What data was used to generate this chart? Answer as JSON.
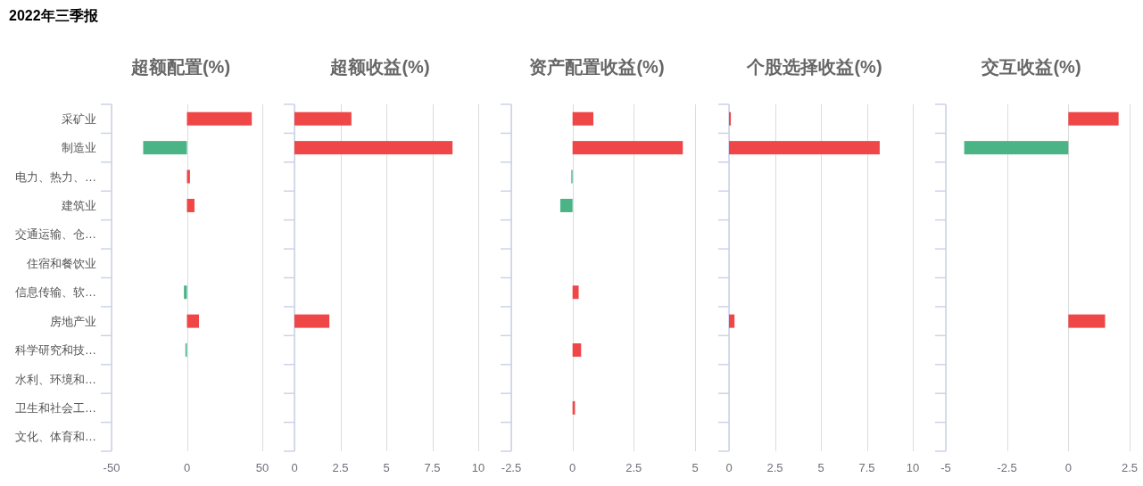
{
  "chart_data": [
    {
      "type": "other",
      "title": "2022年三季报"
    },
    {
      "type": "bar",
      "orientation": "horizontal",
      "title": "超额配置(%)",
      "categories": [
        "采矿业",
        "制造业",
        "电力、热力、…",
        "建筑业",
        "交通运输、仓…",
        "住宿和餐饮业",
        "信息传输、软…",
        "房地产业",
        "科学研究和技…",
        "水利、环境和…",
        "卫生和社会工…",
        "文化、体育和…"
      ],
      "values": [
        43,
        -29,
        2,
        5,
        null,
        null,
        -2,
        8,
        -1,
        null,
        null,
        null
      ],
      "colors": [
        "#ef4747",
        "#4bb487",
        "#ef4747",
        "#ef4747",
        null,
        null,
        "#4bb487",
        "#ef4747",
        "#4bb487",
        null,
        null,
        null
      ],
      "xlim": [
        -50,
        50
      ],
      "xticks": [
        -50,
        0,
        50
      ],
      "grid": "x"
    },
    {
      "type": "bar",
      "orientation": "horizontal",
      "title": "超额收益(%)",
      "categories": [
        null,
        null,
        null,
        null,
        null,
        null,
        null,
        null,
        null,
        null,
        null,
        null
      ],
      "values": [
        3.1,
        8.6,
        null,
        null,
        null,
        null,
        null,
        1.9,
        null,
        null,
        null,
        null
      ],
      "colors": [
        "#ef4747",
        "#ef4747",
        null,
        null,
        null,
        null,
        null,
        "#ef4747",
        null,
        null,
        null,
        null
      ],
      "xlim": [
        0,
        10
      ],
      "xticks": [
        0,
        2.5,
        5,
        7.5,
        10
      ],
      "grid": "x",
      "tick_labels": "x"
    },
    {
      "type": "bar",
      "orientation": "horizontal",
      "title": "资产配置收益(%)",
      "categories": [
        null,
        null,
        null,
        null,
        null,
        null,
        null,
        null,
        null,
        null,
        null,
        null
      ],
      "values": [
        0.85,
        4.5,
        -0.05,
        -0.5,
        null,
        null,
        0.25,
        null,
        0.35,
        null,
        0.1,
        null
      ],
      "colors": [
        "#ef4747",
        "#ef4747",
        "#4bb487",
        "#4bb487",
        null,
        null,
        "#ef4747",
        null,
        "#ef4747",
        null,
        "#ef4747",
        null
      ],
      "xlim": [
        -2.5,
        5
      ],
      "xticks": [
        -2.5,
        0,
        2.5,
        5
      ],
      "grid": "x",
      "tick_labels": "x"
    },
    {
      "type": "bar",
      "orientation": "horizontal",
      "title": "个股选择收益(%)",
      "categories": [
        null,
        null,
        null,
        null,
        null,
        null,
        null,
        null,
        null,
        null,
        null,
        null
      ],
      "values": [
        0.1,
        8.2,
        null,
        null,
        null,
        null,
        null,
        0.3,
        null,
        null,
        null,
        null
      ],
      "colors": [
        "#ef4747",
        "#ef4747",
        null,
        null,
        null,
        null,
        null,
        "#ef4747",
        null,
        null,
        null,
        null
      ],
      "xlim": [
        0,
        10
      ],
      "xticks": [
        0,
        2.5,
        5,
        7.5,
        10
      ],
      "grid": "x",
      "tick_labels": "x"
    },
    {
      "type": "bar",
      "orientation": "horizontal",
      "title": "交互收益(%)",
      "categories": [
        null,
        null,
        null,
        null,
        null,
        null,
        null,
        null,
        null,
        null,
        null,
        null
      ],
      "values": [
        2.05,
        -4.25,
        null,
        null,
        null,
        null,
        null,
        1.5,
        null,
        null,
        null,
        null
      ],
      "colors": [
        "#ef4747",
        "#4bb487",
        null,
        null,
        null,
        null,
        null,
        "#ef4747",
        null,
        null,
        null,
        null
      ],
      "xlim": [
        -5,
        2.5
      ],
      "xticks": [
        -5,
        -2.5,
        0,
        2.5
      ],
      "grid": "x",
      "tick_labels": "x"
    }
  ]
}
